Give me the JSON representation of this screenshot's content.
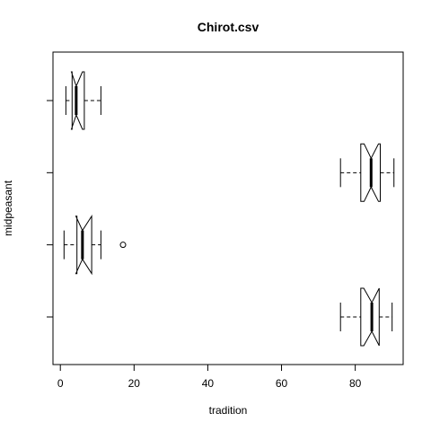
{
  "chart_data": {
    "type": "boxplot",
    "title": "Chirot.csv",
    "xlabel": "tradition",
    "ylabel": "midpeasant",
    "orientation": "horizontal",
    "notch": true,
    "xlim": [
      -2,
      93
    ],
    "x_ticks": [
      0,
      20,
      40,
      60,
      80
    ],
    "y_tick_count": 4,
    "y_tick_labels_shown": false,
    "boxes": [
      {
        "whisker_low": 76,
        "q1": 81.5,
        "notch_low": 82.3,
        "median": 84.5,
        "notch_high": 86.5,
        "q3": 86.5,
        "whisker_high": 90,
        "outliers": []
      },
      {
        "whisker_low": 1,
        "q1": 4.5,
        "notch_low": 4.2,
        "median": 6,
        "notch_high": 8.5,
        "q3": 8.5,
        "whisker_high": 11,
        "outliers": [
          17
        ]
      },
      {
        "whisker_low": 76,
        "q1": 81.5,
        "notch_low": 82.4,
        "median": 84.3,
        "notch_high": 86.3,
        "q3": 86.8,
        "whisker_high": 90.5,
        "outliers": []
      },
      {
        "whisker_low": 1.5,
        "q1": 3.2,
        "notch_low": 3,
        "median": 4.3,
        "notch_high": 6,
        "q3": 6.5,
        "whisker_high": 11,
        "outliers": []
      }
    ],
    "grid": false,
    "legend": "none"
  }
}
